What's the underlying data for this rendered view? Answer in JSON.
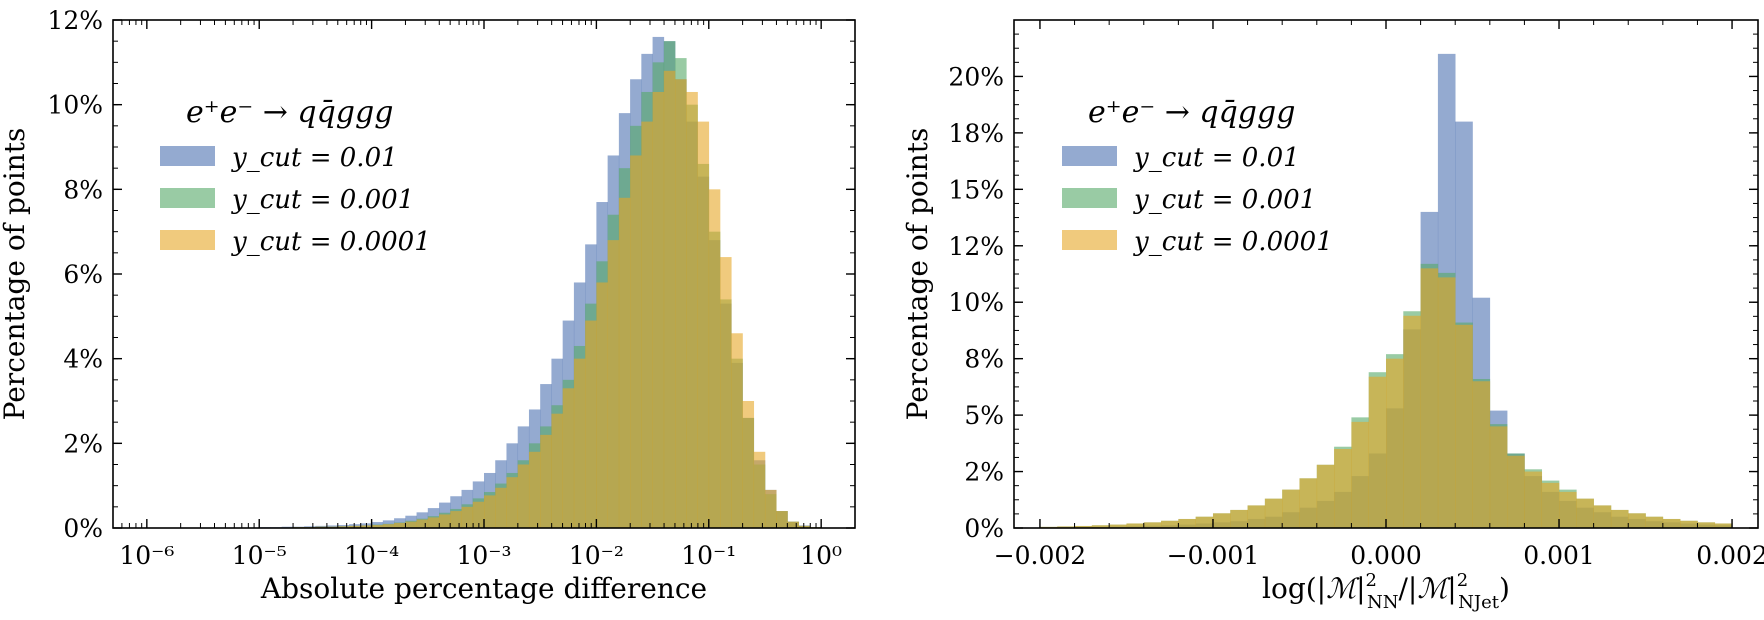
{
  "colors": {
    "series_1": "#4c72b0",
    "series_2": "#55a868",
    "series_3": "#e6a626",
    "opacity": 0.6
  },
  "chart_data": [
    {
      "type": "histogram",
      "process_label": "e⁺e⁻ → qq̄ggg",
      "xlabel": "Absolute percentage difference",
      "ylabel": "Percentage of points",
      "xscale": "log",
      "xlim": [
        5e-07,
        2.0
      ],
      "ylim": [
        0,
        12
      ],
      "x_ticks": [
        -6,
        -5,
        -4,
        -3,
        -2,
        -1,
        0
      ],
      "x_tick_labels": [
        "10⁻⁶",
        "10⁻⁵",
        "10⁻⁴",
        "10⁻³",
        "10⁻²",
        "10⁻¹",
        "10⁰"
      ],
      "y_ticks": [
        0,
        2,
        4,
        6,
        8,
        10,
        12
      ],
      "y_tick_labels": [
        "0%",
        "2%",
        "4%",
        "6%",
        "8%",
        "10%",
        "12%"
      ],
      "bin_start_log10": -5.0,
      "bin_width_log10": 0.1,
      "legend_position": "upper-left",
      "series": [
        {
          "name": "y_cut = 0.01",
          "values": [
            0.02,
            0.02,
            0.03,
            0.03,
            0.04,
            0.05,
            0.06,
            0.07,
            0.09,
            0.11,
            0.14,
            0.18,
            0.23,
            0.29,
            0.37,
            0.47,
            0.6,
            0.75,
            0.9,
            1.1,
            1.3,
            1.6,
            2.0,
            2.4,
            2.8,
            3.4,
            4.0,
            4.9,
            5.8,
            6.7,
            7.7,
            8.8,
            9.8,
            10.6,
            11.2,
            11.6,
            11.5,
            10.6,
            9.6,
            8.3,
            6.8,
            5.3,
            3.9,
            2.6,
            1.6,
            0.9,
            0.4,
            0.15,
            0.06,
            0.02
          ]
        },
        {
          "name": "y_cut = 0.001",
          "values": [
            0.01,
            0.01,
            0.01,
            0.02,
            0.02,
            0.03,
            0.03,
            0.04,
            0.05,
            0.06,
            0.08,
            0.1,
            0.13,
            0.17,
            0.22,
            0.28,
            0.36,
            0.45,
            0.56,
            0.7,
            0.85,
            1.05,
            1.3,
            1.6,
            2.0,
            2.4,
            2.9,
            3.5,
            4.3,
            5.3,
            6.3,
            7.4,
            8.5,
            9.5,
            10.3,
            11.0,
            11.5,
            11.1,
            10.0,
            8.6,
            7.0,
            5.4,
            4.0,
            2.6,
            1.5,
            0.8,
            0.4,
            0.15,
            0.05,
            0.02
          ]
        },
        {
          "name": "y_cut = 0.0001",
          "values": [
            0.01,
            0.01,
            0.01,
            0.02,
            0.02,
            0.03,
            0.03,
            0.04,
            0.05,
            0.06,
            0.07,
            0.09,
            0.12,
            0.15,
            0.2,
            0.25,
            0.32,
            0.4,
            0.5,
            0.62,
            0.77,
            0.95,
            1.2,
            1.5,
            1.8,
            2.2,
            2.7,
            3.3,
            4.0,
            4.9,
            5.8,
            6.8,
            7.8,
            8.8,
            9.6,
            10.3,
            10.8,
            10.6,
            10.3,
            9.6,
            8.0,
            6.4,
            4.6,
            3.0,
            1.8,
            0.9,
            0.4,
            0.15,
            0.05,
            0.02
          ]
        }
      ]
    },
    {
      "type": "histogram",
      "process_label": "e⁺e⁻ → qq̄ggg",
      "xlabel_parts": [
        "log(|",
        "ℳ",
        "|",
        "2",
        "NN",
        "/|",
        "ℳ",
        "|",
        "2",
        "NJet",
        ")"
      ],
      "ylabel": "Percentage of points",
      "xscale": "linear",
      "xlim": [
        -0.00215,
        0.00215
      ],
      "ylim": [
        0,
        22.5
      ],
      "x_ticks": [
        -0.002,
        -0.001,
        0.0,
        0.001,
        0.002
      ],
      "x_tick_labels": [
        "−0.002",
        "−0.001",
        "0.000",
        "0.001",
        "0.002"
      ],
      "y_ticks": [
        0,
        2.5,
        5,
        7.5,
        10,
        12.5,
        15,
        17.5,
        20
      ],
      "y_tick_labels": [
        "0%",
        "2%",
        "5%",
        "8%",
        "10%",
        "12%",
        "15%",
        "18%",
        "20%"
      ],
      "bin_start": -0.002,
      "bin_width": 0.0001,
      "legend_position": "upper-left",
      "series": [
        {
          "name": "y_cut = 0.01",
          "values": [
            0.02,
            0.03,
            0.04,
            0.05,
            0.06,
            0.08,
            0.1,
            0.12,
            0.15,
            0.2,
            0.25,
            0.3,
            0.4,
            0.5,
            0.7,
            0.9,
            1.2,
            1.6,
            2.3,
            3.3,
            5.3,
            8.8,
            14.0,
            21.0,
            18.0,
            10.2,
            5.2,
            3.3,
            2.3,
            1.6,
            1.2,
            0.9,
            0.7,
            0.5,
            0.4,
            0.3,
            0.25,
            0.2,
            0.15,
            0.12
          ]
        },
        {
          "name": "y_cut = 0.001",
          "values": [
            0.05,
            0.07,
            0.09,
            0.12,
            0.15,
            0.2,
            0.25,
            0.32,
            0.4,
            0.5,
            0.65,
            0.8,
            1.0,
            1.3,
            1.7,
            2.2,
            2.8,
            3.6,
            4.9,
            6.9,
            7.7,
            9.6,
            11.7,
            11.3,
            9.1,
            6.6,
            4.6,
            3.3,
            2.6,
            2.1,
            1.7,
            1.3,
            1.0,
            0.8,
            0.65,
            0.5,
            0.4,
            0.32,
            0.25,
            0.2
          ]
        },
        {
          "name": "y_cut = 0.0001",
          "values": [
            0.05,
            0.07,
            0.09,
            0.12,
            0.15,
            0.2,
            0.25,
            0.32,
            0.4,
            0.5,
            0.65,
            0.8,
            1.0,
            1.3,
            1.7,
            2.2,
            2.8,
            3.5,
            4.7,
            6.7,
            7.5,
            9.4,
            11.5,
            11.1,
            9.0,
            6.5,
            4.5,
            3.2,
            2.5,
            2.0,
            1.6,
            1.3,
            1.0,
            0.8,
            0.65,
            0.5,
            0.4,
            0.32,
            0.25,
            0.2
          ]
        }
      ]
    }
  ]
}
